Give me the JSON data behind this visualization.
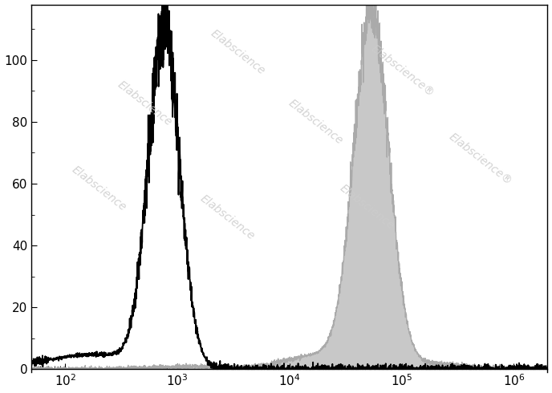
{
  "xlim": [
    50,
    2000000
  ],
  "ylim": [
    -1,
    118
  ],
  "yticks": [
    0,
    20,
    40,
    60,
    80,
    100
  ],
  "xtick_positions": [
    100,
    1000,
    10000,
    100000,
    1000000
  ],
  "xtick_labels": [
    "$10^2$",
    "$10^3$",
    "$10^4$",
    "$10^5$",
    "$10^6$"
  ],
  "background_color": "#ffffff",
  "watermark_text": "Elabscience",
  "watermark_color": "#cccccc",
  "black_hist": {
    "peak_log": 2.88,
    "peak_height": 109,
    "sigma_log": 0.14,
    "color": "black",
    "linewidth": 1.3
  },
  "gray_hist": {
    "peak_log": 4.73,
    "peak_height": 115,
    "sigma_log": 0.155,
    "color": "#aaaaaa",
    "linewidth": 1.0,
    "fill_color": "#c8c8c8",
    "fill_alpha": 1.0
  },
  "spine_linewidth": 1.0,
  "tick_direction": "in",
  "figsize": [
    6.88,
    4.9
  ],
  "dpi": 100
}
